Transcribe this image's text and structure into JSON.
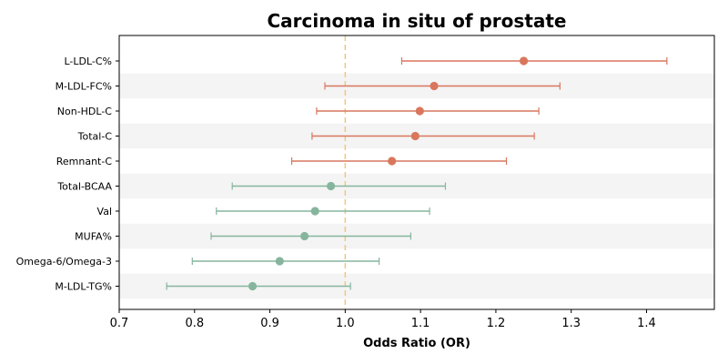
{
  "chart_data": {
    "type": "forest",
    "title": "Carcinoma in situ of prostate",
    "xlabel": "Odds Ratio (OR)",
    "ylabel": "",
    "xlim": [
      0.7,
      1.49
    ],
    "xticks": [
      0.7,
      0.8,
      0.9,
      1.0,
      1.1,
      1.2,
      1.3,
      1.4
    ],
    "xtick_labels": [
      "0.7",
      "0.8",
      "0.9",
      "1.0",
      "1.1",
      "1.2",
      "1.3",
      "1.4"
    ],
    "reference_line": 1.0,
    "colors": {
      "risk": "#d9775d",
      "protective": "#86b59d",
      "reference": "#f5c77a",
      "band": "#f4f4f4"
    },
    "points": [
      {
        "label": "L-LDL-C%",
        "or": 1.237,
        "lower": 1.075,
        "upper": 1.427,
        "group": "risk"
      },
      {
        "label": "M-LDL-FC%",
        "or": 1.118,
        "lower": 0.973,
        "upper": 1.285,
        "group": "risk"
      },
      {
        "label": "Non-HDL-C",
        "or": 1.099,
        "lower": 0.962,
        "upper": 1.257,
        "group": "risk"
      },
      {
        "label": "Total-C",
        "or": 1.093,
        "lower": 0.956,
        "upper": 1.251,
        "group": "risk"
      },
      {
        "label": "Remnant-C",
        "or": 1.062,
        "lower": 0.929,
        "upper": 1.214,
        "group": "risk"
      },
      {
        "label": "Total-BCAA",
        "or": 0.981,
        "lower": 0.85,
        "upper": 1.133,
        "group": "protective"
      },
      {
        "label": "Val",
        "or": 0.96,
        "lower": 0.829,
        "upper": 1.112,
        "group": "protective"
      },
      {
        "label": "MUFA%",
        "or": 0.946,
        "lower": 0.822,
        "upper": 1.087,
        "group": "protective"
      },
      {
        "label": "Omega-6/Omega-3",
        "or": 0.913,
        "lower": 0.797,
        "upper": 1.045,
        "group": "protective"
      },
      {
        "label": "M-LDL-TG%",
        "or": 0.877,
        "lower": 0.763,
        "upper": 1.007,
        "group": "protective"
      }
    ]
  }
}
